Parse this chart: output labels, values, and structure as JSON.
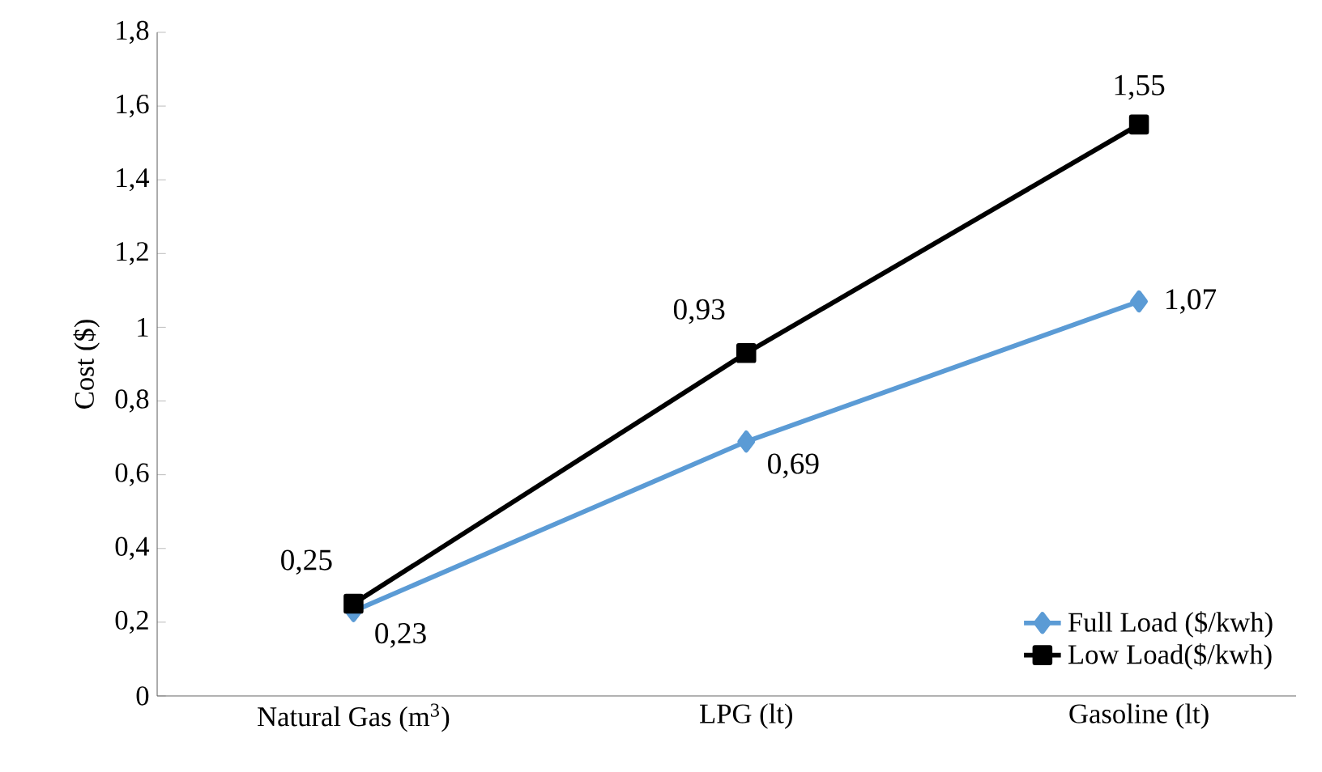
{
  "chart_data": {
    "type": "line",
    "ylabel": "Cost ($)",
    "categories": [
      "Natural Gas (m$^{3}$)",
      "LPG (lt)",
      "Gasoline (lt)"
    ],
    "series": [
      {
        "name": "Full Load ($/kwh)",
        "color": "#5b9bd5",
        "marker": "diamond",
        "values": [
          0.23,
          0.69,
          1.07
        ],
        "value_labels": [
          "0,23",
          "0,69",
          "1,07"
        ]
      },
      {
        "name": "Low Load($/kwh)",
        "color": "#000000",
        "marker": "square",
        "values": [
          0.25,
          0.93,
          1.55
        ],
        "value_labels": [
          "0,25",
          "0,93",
          "1,55"
        ]
      }
    ],
    "ylim": [
      0,
      1.8
    ],
    "yticks": [
      {
        "value": 0,
        "label": "0"
      },
      {
        "value": 0.2,
        "label": "0,2"
      },
      {
        "value": 0.4,
        "label": "0,4"
      },
      {
        "value": 0.6,
        "label": "0,6"
      },
      {
        "value": 0.8,
        "label": "0,8"
      },
      {
        "value": 1,
        "label": "1"
      },
      {
        "value": 1.2,
        "label": "1,2"
      },
      {
        "value": 1.4,
        "label": "1,4"
      },
      {
        "value": 1.6,
        "label": "1,6"
      },
      {
        "value": 1.8,
        "label": "1,8"
      }
    ],
    "legend": "bottom right",
    "line_style": "solid"
  }
}
